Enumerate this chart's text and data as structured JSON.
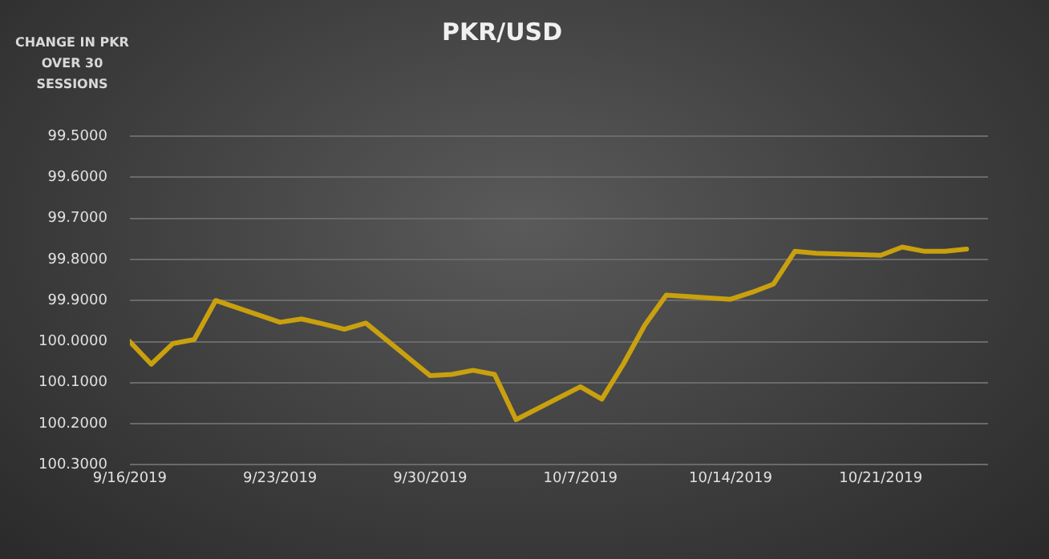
{
  "chart_data": {
    "type": "line",
    "title": "PKR/USD",
    "annotations": [
      "CHANGE IN PKR OVER 30 SESSIONS"
    ],
    "x": [
      "2019-09-16",
      "2019-09-17",
      "2019-09-18",
      "2019-09-19",
      "2019-09-20",
      "2019-09-23",
      "2019-09-24",
      "2019-09-25",
      "2019-09-26",
      "2019-09-27",
      "2019-09-30",
      "2019-10-01",
      "2019-10-02",
      "2019-10-03",
      "2019-10-04",
      "2019-10-07",
      "2019-10-08",
      "2019-10-09",
      "2019-10-10",
      "2019-10-11",
      "2019-10-14",
      "2019-10-15",
      "2019-10-16",
      "2019-10-17",
      "2019-10-18",
      "2019-10-21",
      "2019-10-22",
      "2019-10-23",
      "2019-10-24",
      "2019-10-25"
    ],
    "series": [
      {
        "color": "#c9a00e",
        "values": [
          100.0,
          100.055,
          100.005,
          99.995,
          99.9,
          99.953,
          99.945,
          99.957,
          99.97,
          99.955,
          100.083,
          100.08,
          100.07,
          100.08,
          100.19,
          100.11,
          100.14,
          100.055,
          99.96,
          99.887,
          99.897,
          99.88,
          99.86,
          99.78,
          99.785,
          99.79,
          99.77,
          99.78,
          99.78,
          99.775
        ]
      }
    ],
    "xlim": [
      "2019-09-16",
      "2019-10-26"
    ],
    "xticks": [
      {
        "value": "2019-09-16",
        "label": "9/16/2019"
      },
      {
        "value": "2019-09-23",
        "label": "9/23/2019"
      },
      {
        "value": "2019-09-30",
        "label": "9/30/2019"
      },
      {
        "value": "2019-10-07",
        "label": "10/7/2019"
      },
      {
        "value": "2019-10-14",
        "label": "10/14/2019"
      },
      {
        "value": "2019-10-21",
        "label": "10/21/2019"
      }
    ],
    "ylim": [
      100.3,
      99.5
    ],
    "yticks": [
      {
        "value": 99.5,
        "label": "99.5000"
      },
      {
        "value": 99.6,
        "label": "99.6000"
      },
      {
        "value": 99.7,
        "label": "99.7000"
      },
      {
        "value": 99.8,
        "label": "99.8000"
      },
      {
        "value": 99.9,
        "label": "99.9000"
      },
      {
        "value": 100.0,
        "label": "100.0000"
      },
      {
        "value": 100.1,
        "label": "100.1000"
      },
      {
        "value": 100.2,
        "label": "100.2000"
      },
      {
        "value": 100.3,
        "label": "100.3000"
      }
    ],
    "grid": "y",
    "legend": false,
    "marker": "none",
    "line_style": "solid"
  }
}
